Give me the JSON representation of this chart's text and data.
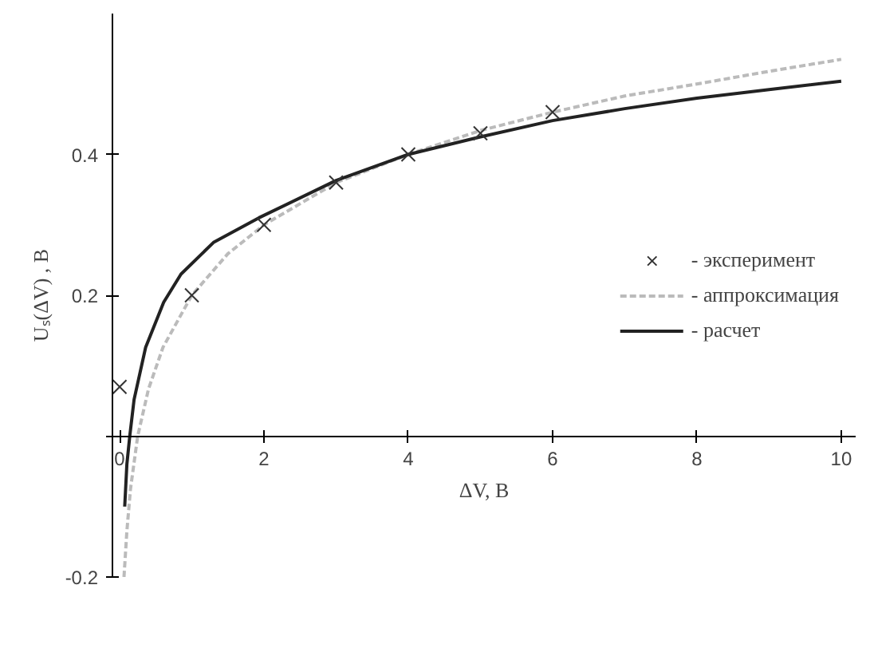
{
  "chart_data": {
    "type": "line",
    "xlabel": "ΔV, В",
    "ylabel": "Uₛ(ΔV) , В",
    "xlim": [
      -0.1,
      10.2
    ],
    "ylim": [
      -0.2,
      0.6
    ],
    "xticks": [
      0,
      2,
      4,
      6,
      8,
      10
    ],
    "yticks": [
      -0.2,
      {
        "value": 0,
        "label": null
      },
      0.2,
      0.4
    ],
    "grid": false,
    "legend": "right",
    "series": [
      {
        "name": "- эксперимент",
        "type": "scatter",
        "marker": "cross",
        "color": "#333333",
        "x": [
          0,
          1,
          2,
          3,
          4,
          5,
          6
        ],
        "values": [
          0.07,
          0.2,
          0.3,
          0.36,
          0.4,
          0.43,
          0.46
        ]
      },
      {
        "name": "- аппроксимация",
        "line_style": "dashed",
        "color": "#bbbbbb",
        "x": [
          0.06,
          0.1,
          0.15,
          0.25,
          0.4,
          0.6,
          1,
          1.5,
          2,
          3,
          4,
          5,
          6,
          7,
          8,
          9,
          10
        ],
        "values": [
          -0.2,
          -0.135,
          -0.075,
          0,
          0.067,
          0.126,
          0.2,
          0.259,
          0.3,
          0.36,
          0.4,
          0.434,
          0.46,
          0.483,
          0.5,
          0.518,
          0.535
        ]
      },
      {
        "name": "- расчет",
        "line_style": "solid",
        "color": "#222222",
        "x": [
          0.07,
          0.1,
          0.14,
          0.2,
          0.36,
          0.61,
          0.85,
          1.3,
          1.93,
          3,
          4,
          5,
          6,
          7,
          8,
          9,
          10
        ],
        "values": [
          -0.1,
          -0.04,
          0,
          0.052,
          0.126,
          0.19,
          0.23,
          0.275,
          0.31,
          0.363,
          0.4,
          0.425,
          0.448,
          0.465,
          0.48,
          0.492,
          0.504
        ]
      }
    ]
  }
}
